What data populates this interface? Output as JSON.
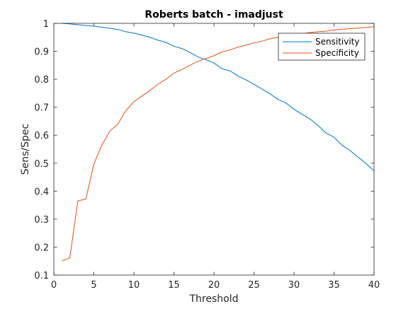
{
  "chart_data": {
    "type": "line",
    "title": "Roberts batch -  imadjust",
    "xlabel": "Threshold",
    "ylabel": "Sens/Spec",
    "xlim": [
      0,
      40
    ],
    "ylim": [
      0.1,
      1
    ],
    "xticks": [
      0,
      5,
      10,
      15,
      20,
      25,
      30,
      35,
      40
    ],
    "yticks": [
      0.1,
      0.2,
      0.3,
      0.4,
      0.5,
      0.6,
      0.7,
      0.8,
      0.9,
      1
    ],
    "grid": false,
    "legend_position": "top-right",
    "x": [
      1,
      2,
      3,
      4,
      5,
      6,
      7,
      8,
      9,
      10,
      11,
      12,
      13,
      14,
      15,
      16,
      17,
      18,
      19,
      20,
      21,
      22,
      23,
      24,
      25,
      26,
      27,
      28,
      29,
      30,
      31,
      32,
      33,
      34,
      35,
      36,
      37,
      38,
      39,
      40
    ],
    "series": [
      {
        "name": "Sensitivity",
        "color": "#0072BD",
        "values": [
          1.0,
          0.998,
          0.995,
          0.992,
          0.99,
          0.986,
          0.982,
          0.978,
          0.97,
          0.965,
          0.958,
          0.95,
          0.94,
          0.932,
          0.918,
          0.91,
          0.896,
          0.88,
          0.87,
          0.858,
          0.838,
          0.83,
          0.812,
          0.798,
          0.782,
          0.765,
          0.748,
          0.728,
          0.715,
          0.693,
          0.675,
          0.658,
          0.635,
          0.608,
          0.593,
          0.564,
          0.545,
          0.522,
          0.499,
          0.472
        ]
      },
      {
        "name": "Specificity",
        "color": "#D95319",
        "values": [
          0.15,
          0.162,
          0.365,
          0.372,
          0.497,
          0.565,
          0.615,
          0.64,
          0.688,
          0.72,
          0.74,
          0.76,
          0.782,
          0.8,
          0.822,
          0.835,
          0.85,
          0.864,
          0.874,
          0.884,
          0.898,
          0.905,
          0.915,
          0.922,
          0.93,
          0.936,
          0.945,
          0.95,
          0.955,
          0.96,
          0.963,
          0.967,
          0.97,
          0.972,
          0.976,
          0.979,
          0.981,
          0.983,
          0.985,
          0.988
        ]
      }
    ]
  }
}
